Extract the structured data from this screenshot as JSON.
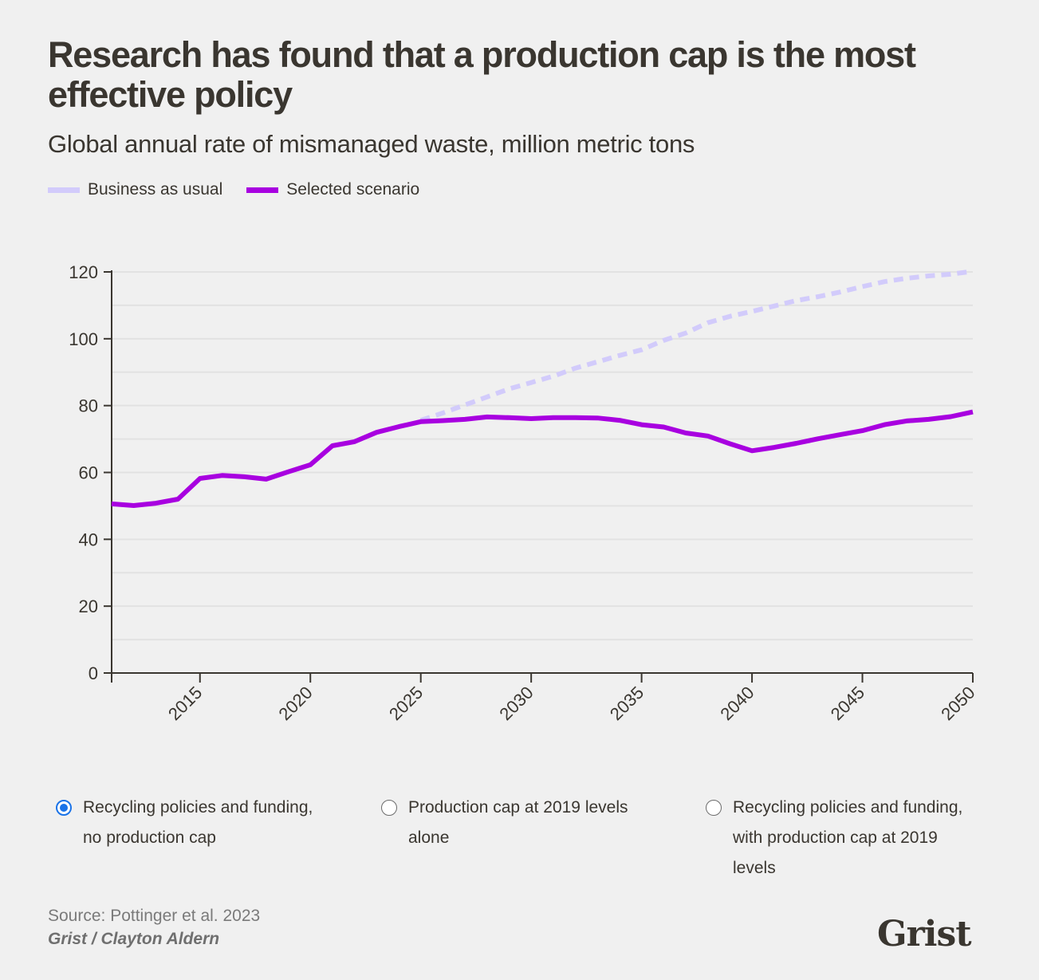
{
  "title": "Research has found that a production cap is the most effective policy",
  "subtitle": "Global annual rate of mismanaged waste, million metric tons",
  "legend": [
    {
      "label": "Business as usual",
      "color": "#d2cbfb",
      "style": "dashed"
    },
    {
      "label": "Selected scenario",
      "color": "#a800e0",
      "style": "solid"
    }
  ],
  "chart_data": {
    "type": "line",
    "title": "Research has found that a production cap is the most effective policy",
    "subtitle": "Global annual rate of mismanaged waste, million metric tons",
    "xlabel": "",
    "ylabel": "",
    "xlim": [
      2011,
      2050
    ],
    "ylim": [
      0,
      120
    ],
    "yticks": [
      0,
      20,
      40,
      60,
      80,
      100,
      120
    ],
    "xticks": [
      2015,
      2020,
      2025,
      2030,
      2035,
      2040,
      2045,
      2050
    ],
    "grid": true,
    "legend_position": "top-left",
    "series": [
      {
        "name": "Business as usual",
        "color": "#d2cbfb",
        "dashed": true,
        "x": [
          2025,
          2026,
          2027,
          2028,
          2029,
          2030,
          2031,
          2032,
          2033,
          2034,
          2035,
          2036,
          2037,
          2038,
          2039,
          2040,
          2041,
          2042,
          2043,
          2044,
          2045,
          2046,
          2047,
          2048,
          2049,
          2050
        ],
        "values": [
          75.6,
          77.8,
          80.2,
          82.6,
          85.0,
          86.9,
          88.8,
          91.2,
          93.1,
          95.0,
          96.7,
          99.5,
          101.7,
          104.8,
          106.7,
          108.2,
          109.8,
          111.4,
          112.6,
          114.0,
          115.6,
          117.1,
          118.1,
          118.8,
          119.3,
          120.2
        ]
      },
      {
        "name": "Selected scenario",
        "color": "#a800e0",
        "dashed": false,
        "x": [
          2011,
          2012,
          2013,
          2014,
          2015,
          2016,
          2017,
          2018,
          2019,
          2020,
          2021,
          2022,
          2023,
          2024,
          2025,
          2026,
          2027,
          2028,
          2029,
          2030,
          2031,
          2032,
          2033,
          2034,
          2035,
          2036,
          2037,
          2038,
          2039,
          2040,
          2041,
          2042,
          2043,
          2044,
          2045,
          2046,
          2047,
          2048,
          2049,
          2050
        ],
        "values": [
          50.6,
          50.1,
          50.8,
          52.0,
          58.2,
          59.1,
          58.7,
          58.0,
          60.2,
          62.3,
          68.0,
          69.2,
          72.0,
          73.7,
          75.2,
          75.5,
          75.9,
          76.6,
          76.4,
          76.1,
          76.4,
          76.4,
          76.3,
          75.6,
          74.3,
          73.6,
          71.8,
          70.9,
          68.6,
          66.5,
          67.5,
          68.7,
          70.1,
          71.3,
          72.5,
          74.3,
          75.4,
          75.9,
          76.7,
          78.1
        ]
      }
    ]
  },
  "options": [
    {
      "label_line1": "Recycling policies and funding,",
      "label_line2": "no production cap",
      "label_line3": "",
      "selected": true
    },
    {
      "label_line1": "Production cap at 2019 levels",
      "label_line2": "alone",
      "label_line3": "",
      "selected": false
    },
    {
      "label_line1": "Recycling policies and funding,",
      "label_line2": "with production cap at 2019",
      "label_line3": "levels",
      "selected": false
    }
  ],
  "footer": {
    "source": "Source: Pottinger et al. 2023",
    "credit": "Grist / Clayton Aldern",
    "logo": "Grist"
  }
}
